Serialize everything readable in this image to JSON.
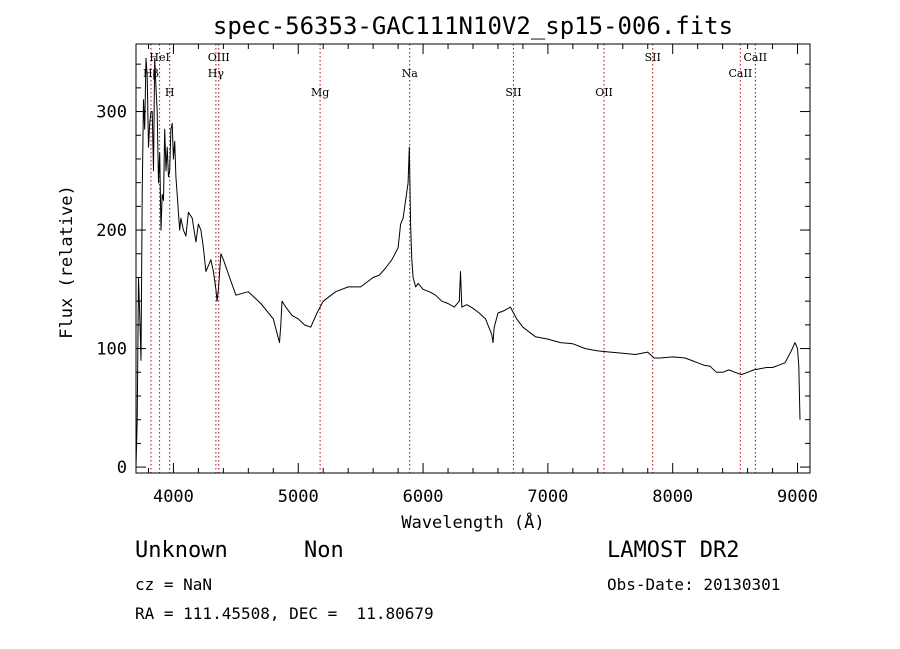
{
  "chart_data": {
    "type": "line",
    "title": "spec-56353-GAC111N10V2_sp15-006.fits",
    "xlabel": "Wavelength (Å)",
    "ylabel": "Flux (relative)",
    "xlim": [
      3700,
      9100
    ],
    "ylim": [
      -5,
      357
    ],
    "xticks": [
      4000,
      5000,
      6000,
      7000,
      8000,
      9000
    ],
    "yticks": [
      0,
      100,
      200,
      300
    ],
    "grid": false,
    "legend": "none",
    "series_color": "#000000",
    "line_marker_color": "#a01010",
    "series": [
      {
        "x": [
          3700,
          3710,
          3720,
          3730,
          3740,
          3750,
          3760,
          3770,
          3780,
          3790,
          3800,
          3810,
          3820,
          3830,
          3840,
          3850,
          3860,
          3870,
          3880,
          3890,
          3900,
          3910,
          3920,
          3930,
          3940,
          3950,
          3960,
          3970,
          3980,
          3990,
          4000,
          4010,
          4020,
          4030,
          4040,
          4050,
          4060,
          4080,
          4100,
          4120,
          4150,
          4180,
          4200,
          4220,
          4240,
          4260,
          4280,
          4300,
          4320,
          4340,
          4350,
          4360,
          4380,
          4400,
          4450,
          4500,
          4600,
          4700,
          4800,
          4850,
          4860,
          4870,
          4900,
          4950,
          5000,
          5050,
          5100,
          5150,
          5200,
          5300,
          5400,
          5500,
          5600,
          5650,
          5700,
          5750,
          5800,
          5820,
          5840,
          5860,
          5880,
          5890,
          5895,
          5900,
          5910,
          5920,
          5940,
          5960,
          6000,
          6050,
          6100,
          6150,
          6200,
          6250,
          6290,
          6300,
          6310,
          6350,
          6400,
          6450,
          6500,
          6550,
          6560,
          6570,
          6600,
          6650,
          6700,
          6750,
          6800,
          6900,
          7000,
          7100,
          7200,
          7300,
          7400,
          7500,
          7600,
          7700,
          7800,
          7850,
          7900,
          8000,
          8100,
          8150,
          8200,
          8250,
          8300,
          8350,
          8400,
          8450,
          8500,
          8550,
          8600,
          8650,
          8700,
          8750,
          8800,
          8850,
          8900,
          8950,
          8980,
          9000,
          9010,
          9020
        ],
        "y": [
          0,
          40,
          160,
          130,
          90,
          230,
          310,
          285,
          345,
          330,
          270,
          290,
          300,
          300,
          250,
          345,
          320,
          300,
          240,
          265,
          200,
          230,
          225,
          285,
          250,
          270,
          245,
          250,
          285,
          290,
          260,
          275,
          245,
          230,
          215,
          200,
          210,
          200,
          195,
          215,
          210,
          190,
          205,
          200,
          185,
          165,
          170,
          175,
          165,
          150,
          140,
          150,
          180,
          175,
          160,
          145,
          148,
          138,
          125,
          105,
          120,
          140,
          135,
          128,
          125,
          120,
          118,
          130,
          140,
          148,
          152,
          152,
          160,
          162,
          168,
          175,
          185,
          205,
          210,
          225,
          240,
          270,
          235,
          205,
          175,
          160,
          152,
          155,
          150,
          148,
          145,
          140,
          138,
          135,
          140,
          165,
          135,
          137,
          134,
          130,
          125,
          112,
          105,
          118,
          130,
          132,
          135,
          125,
          118,
          110,
          108,
          105,
          104,
          100,
          98,
          97,
          96,
          95,
          97,
          92,
          92,
          93,
          92,
          90,
          88,
          86,
          85,
          80,
          80,
          82,
          80,
          78,
          80,
          82,
          83,
          84,
          84,
          86,
          88,
          98,
          105,
          100,
          85,
          40
        ]
      }
    ],
    "line_markers": [
      {
        "x": 3820,
        "label": "Hβ",
        "row": 2
      },
      {
        "x": 3889,
        "label": "HeI",
        "row": 1
      },
      {
        "x": 3970,
        "label": "H",
        "row": 3
      },
      {
        "x": 4340,
        "label": "Hγ",
        "row": 2
      },
      {
        "x": 4363,
        "label": "OIII",
        "row": 1
      },
      {
        "x": 5175,
        "label": "Mg",
        "row": 3
      },
      {
        "x": 5893,
        "label": "Na",
        "row": 2
      },
      {
        "x": 6724,
        "label": "SII",
        "row": 3
      },
      {
        "x": 7450,
        "label": "OII",
        "row": 3
      },
      {
        "x": 7840,
        "label": "SII",
        "row": 1
      },
      {
        "x": 8542,
        "label": "CaII",
        "row": 2
      },
      {
        "x": 8662,
        "label": "CaII",
        "row": 1
      }
    ]
  },
  "info": {
    "object_class": "Unknown",
    "subclass": "Non",
    "survey": "LAMOST DR2",
    "cz": "cz = NaN",
    "obs_date": "Obs-Date: 20130301",
    "coords": "RA = 111.45508, DEC =  11.80679"
  }
}
